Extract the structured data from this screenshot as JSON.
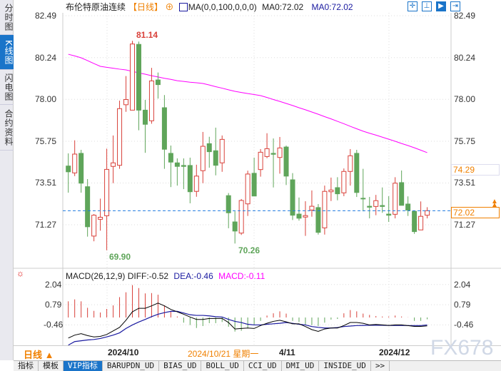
{
  "sidebar": {
    "items": [
      {
        "label": "分时图",
        "active": false
      },
      {
        "label": "K线图",
        "active": true
      },
      {
        "label": "闪电图",
        "active": false
      },
      {
        "label": "合约资料",
        "active": false
      }
    ]
  },
  "header": {
    "title": "布伦特原油连续",
    "period": "【日线】",
    "ma_label": "MA(0,0,100,0,0,0)",
    "ma0a": "MA0:72.02",
    "ma0b": "MA0:72.02",
    "icons": [
      "crosshair-icon",
      "range-icon",
      "zoom-fit-icon",
      "scroll-right-icon"
    ]
  },
  "colors": {
    "up": "#d9413a",
    "down": "#5fa55a",
    "ma": "#ff00ff",
    "diff": "#000000",
    "dea": "#1a1aa0",
    "price_line": "#1e7be0",
    "accent": "#f08000"
  },
  "price_axis": {
    "ticks": [
      "82.49",
      "80.24",
      "78.00",
      "75.75",
      "73.51",
      "71.27"
    ],
    "min": 69.9,
    "max": 82.49
  },
  "annotations": {
    "high": "81.14",
    "low1": "69.90",
    "low2": "70.26"
  },
  "price_tags": {
    "marker": "74.29",
    "last": "72.02"
  },
  "chart_data": [
    {
      "type": "candlestick",
      "ylim": [
        70.2,
        82.49
      ],
      "ohlc": [
        [
          74.42,
          75.1,
          72.99,
          74.11
        ],
        [
          74.05,
          75.8,
          73.88,
          75.06
        ],
        [
          75.1,
          75.29,
          72.99,
          73.5
        ],
        [
          73.31,
          73.72,
          70.63,
          71.16
        ],
        [
          70.66,
          71.84,
          70.38,
          71.78
        ],
        [
          71.56,
          72.67,
          70.95,
          71.67
        ],
        [
          71.75,
          75.35,
          69.9,
          74.24
        ],
        [
          74.4,
          76.06,
          73.5,
          74.59
        ],
        [
          74.46,
          77.93,
          74.27,
          77.5
        ],
        [
          77.71,
          79.25,
          77.33,
          77.99
        ],
        [
          77.42,
          81.14,
          77.42,
          80.97
        ],
        [
          80.95,
          81.1,
          76.34,
          77.42
        ],
        [
          77.42,
          77.97,
          75.13,
          76.66
        ],
        [
          76.85,
          79.69,
          76.69,
          78.99
        ],
        [
          79.04,
          79.44,
          78.04,
          78.79
        ],
        [
          77.55,
          78.23,
          74.27,
          75.32
        ],
        [
          75.1,
          75.52,
          73.29,
          74.63
        ],
        [
          74.59,
          74.83,
          73.37,
          74.4
        ],
        [
          74.45,
          74.83,
          73.18,
          74.4
        ],
        [
          74.45,
          74.87,
          72.42,
          73.04
        ],
        [
          73.06,
          74.49,
          72.77,
          73.88
        ],
        [
          74.17,
          76.25,
          73.5,
          75.48
        ],
        [
          75.62,
          75.99,
          74.33,
          75.19
        ],
        [
          75.24,
          76.48,
          73.92,
          74.46
        ],
        [
          74.59,
          76.06,
          74.11,
          75.85
        ],
        [
          72.83,
          72.97,
          71.08,
          71.91
        ],
        [
          71.42,
          71.99,
          70.26,
          70.93
        ],
        [
          70.82,
          72.65,
          70.72,
          72.57
        ],
        [
          72.39,
          74.17,
          71.74,
          73.99
        ],
        [
          74.03,
          74.87,
          72.81,
          72.81
        ],
        [
          74.23,
          75.33,
          73.85,
          75.16
        ],
        [
          74.93,
          76.18,
          74.84,
          75.35
        ],
        [
          75.1,
          75.9,
          73.27,
          75.05
        ],
        [
          74.88,
          75.98,
          74.01,
          75.39
        ],
        [
          75.44,
          75.52,
          73.4,
          73.88
        ],
        [
          73.68,
          74.04,
          71.52,
          71.78
        ],
        [
          71.84,
          72.73,
          71.49,
          71.62
        ],
        [
          71.68,
          72.53,
          70.67,
          71.76
        ],
        [
          72.06,
          73.11,
          71.7,
          72.26
        ],
        [
          72.19,
          72.38,
          70.74,
          70.86
        ],
        [
          71.1,
          73.37,
          70.74,
          73.06
        ],
        [
          73.04,
          73.8,
          72.54,
          73.13
        ],
        [
          73.26,
          73.82,
          72.58,
          72.93
        ],
        [
          72.98,
          74.29,
          72.8,
          74.13
        ],
        [
          74.13,
          75.33,
          73.37,
          74.97
        ],
        [
          75.1,
          75.29,
          72.76,
          73.0
        ],
        [
          72.69,
          74.27,
          71.99,
          72.66
        ],
        [
          72.26,
          72.76,
          71.61,
          72.21
        ],
        [
          72.25,
          72.87,
          71.78,
          72.56
        ],
        [
          72.3,
          73.27,
          71.91,
          72.25
        ],
        [
          71.84,
          72.8,
          71.42,
          71.78
        ],
        [
          71.83,
          73.82,
          71.61,
          73.5
        ],
        [
          73.53,
          74.18,
          72.31,
          72.31
        ],
        [
          72.38,
          72.79,
          71.74,
          72.05
        ],
        [
          71.99,
          71.99,
          70.78,
          70.9
        ],
        [
          70.99,
          72.52,
          70.99,
          71.72
        ],
        [
          71.78,
          72.21,
          71.61,
          72.02
        ]
      ],
      "ma100": [
        80.42,
        80.33,
        80.23,
        80.08,
        79.92,
        79.77,
        79.72,
        79.67,
        79.62,
        79.58,
        79.5,
        79.42,
        79.35,
        79.27,
        79.2,
        79.13,
        79.07,
        79.0,
        78.96,
        78.92,
        78.89,
        78.85,
        78.77,
        78.68,
        78.6,
        78.51,
        78.43,
        78.37,
        78.31,
        78.26,
        78.2,
        78.1,
        77.99,
        77.89,
        77.78,
        77.67,
        77.55,
        77.44,
        77.32,
        77.2,
        77.07,
        76.95,
        76.82,
        76.69,
        76.55,
        76.42,
        76.29,
        76.18,
        76.08,
        75.97,
        75.86,
        75.75,
        75.63,
        75.52,
        75.4,
        75.27,
        75.14
      ],
      "last_price": 72.02
    },
    {
      "type": "macd",
      "title": "MACD(26,12,9)",
      "diff_label": "DIFF:-0.52",
      "dea_label": "DEA:-0.46",
      "macd_label": "MACD:-0.11",
      "ticks": [
        "2.04",
        "0.79",
        "-0.46"
      ],
      "ylim": [
        -1.75,
        2.2
      ],
      "macd": [
        1.0,
        1.12,
        1.0,
        0.6,
        0.41,
        0.31,
        0.53,
        0.75,
        1.26,
        1.56,
        2.0,
        1.82,
        1.49,
        1.51,
        1.41,
        0.75,
        0.38,
        0.06,
        -0.32,
        -0.47,
        -0.65,
        -0.53,
        -0.35,
        -0.35,
        -0.28,
        -0.57,
        -0.87,
        -0.82,
        -0.65,
        -0.43,
        -0.21,
        0.12,
        0.26,
        0.38,
        0.24,
        -0.21,
        -0.28,
        -0.43,
        -0.47,
        -0.53,
        -0.32,
        -0.13,
        -0.09,
        0.26,
        0.46,
        0.38,
        0.24,
        0.16,
        0.09,
        0.06,
        0.06,
        0.12,
        0.06,
        0.01,
        -0.21,
        -0.21,
        -0.11
      ],
      "diff": [
        -1.27,
        -1.09,
        -1.0,
        -1.12,
        -1.2,
        -1.17,
        -1.05,
        -0.83,
        -0.61,
        -0.17,
        0.35,
        0.57,
        0.57,
        0.72,
        0.89,
        0.72,
        0.5,
        0.35,
        0.2,
        0.03,
        -0.12,
        -0.12,
        -0.06,
        -0.06,
        -0.06,
        -0.31,
        -0.71,
        -0.68,
        -0.65,
        -0.68,
        -0.5,
        -0.36,
        -0.24,
        -0.17,
        -0.27,
        -0.39,
        -0.39,
        -0.56,
        -0.75,
        -0.86,
        -0.71,
        -0.65,
        -0.65,
        -0.5,
        -0.31,
        -0.31,
        -0.36,
        -0.46,
        -0.43,
        -0.46,
        -0.49,
        -0.46,
        -0.46,
        -0.5,
        -0.55,
        -0.55,
        -0.52
      ],
      "dea": [
        -1.71,
        -1.49,
        -1.44,
        -1.39,
        -1.36,
        -1.3,
        -1.2,
        -1.09,
        -0.95,
        -0.68,
        -0.46,
        -0.28,
        -0.12,
        0.05,
        0.2,
        0.3,
        0.38,
        0.38,
        0.28,
        0.17,
        0.13,
        0.13,
        0.1,
        0.05,
        0.03,
        -0.12,
        -0.24,
        -0.31,
        -0.42,
        -0.46,
        -0.46,
        -0.42,
        -0.39,
        -0.36,
        -0.31,
        -0.36,
        -0.42,
        -0.46,
        -0.56,
        -0.61,
        -0.65,
        -0.65,
        -0.62,
        -0.56,
        -0.53,
        -0.5,
        -0.49,
        -0.48,
        -0.48,
        -0.48,
        -0.49,
        -0.49,
        -0.49,
        -0.5,
        -0.5,
        -0.5,
        -0.46
      ]
    }
  ],
  "xaxis": {
    "period_btn": "日线 ▲",
    "labels": [
      "2024/10",
      "4/11",
      "2024/12"
    ],
    "cursor_date": "2024/10/21 星期一",
    "watermark": "FX678"
  },
  "tabs": [
    {
      "label": "指标"
    },
    {
      "label": "模板"
    },
    {
      "label": "VIP指标",
      "active": true
    },
    {
      "label": "BARUPDN_UD"
    },
    {
      "label": "BIAS_UD"
    },
    {
      "label": "BOLL_UD"
    },
    {
      "label": "CCI_UD"
    },
    {
      "label": "DMI_UD"
    },
    {
      "label": "INSIDE_UD"
    },
    {
      "label": ">>"
    }
  ]
}
